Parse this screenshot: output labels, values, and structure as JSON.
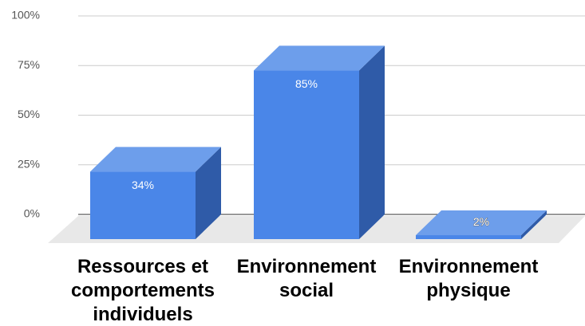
{
  "chart_data": {
    "type": "bar3d",
    "categories": [
      "Ressources et comportements individuels",
      "Environnement social",
      "Environnement physique"
    ],
    "values": [
      34,
      85,
      2
    ],
    "value_labels": [
      "34%",
      "85%",
      "2%"
    ],
    "color": "#4a86e8",
    "ylim": [
      0,
      100
    ],
    "yticks": [
      {
        "value": 0,
        "label": "0%"
      },
      {
        "value": 25,
        "label": "25%"
      },
      {
        "value": 50,
        "label": "50%"
      },
      {
        "value": 75,
        "label": "75%"
      },
      {
        "value": 100,
        "label": "100%"
      }
    ],
    "grid": true
  }
}
